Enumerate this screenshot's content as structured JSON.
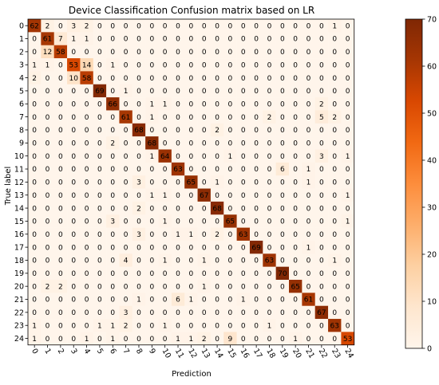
{
  "chart_data": {
    "type": "heatmap",
    "title": "Device Classification Confusion matrix based on LR",
    "xlabel": "Prediction",
    "ylabel": "True label",
    "x_ticks": [
      "0",
      "1",
      "2",
      "3",
      "4",
      "5",
      "6",
      "7",
      "8",
      "9",
      "10",
      "11",
      "12",
      "13",
      "14",
      "15",
      "16",
      "17",
      "18",
      "19",
      "20",
      "21",
      "22",
      "23",
      "24"
    ],
    "y_ticks": [
      "0",
      "1",
      "2",
      "3",
      "4",
      "5",
      "6",
      "7",
      "8",
      "9",
      "10",
      "11",
      "12",
      "13",
      "14",
      "15",
      "16",
      "17",
      "18",
      "19",
      "20",
      "21",
      "22",
      "23",
      "24"
    ],
    "colorbar": {
      "min": 0,
      "max": 70,
      "ticks": [
        0,
        10,
        20,
        30,
        40,
        50,
        60,
        70
      ]
    },
    "colormap": [
      "#fff5eb",
      "#fee6ce",
      "#fdd0a2",
      "#fdae6b",
      "#fd8d3c",
      "#f16913",
      "#d94801",
      "#a63603",
      "#7f2704"
    ],
    "grid": false,
    "matrix": [
      [
        62,
        2,
        0,
        3,
        2,
        0,
        0,
        0,
        0,
        0,
        0,
        0,
        0,
        0,
        0,
        0,
        0,
        0,
        0,
        0,
        0,
        0,
        0,
        1,
        0
      ],
      [
        0,
        61,
        7,
        1,
        1,
        0,
        0,
        0,
        0,
        0,
        0,
        0,
        0,
        0,
        0,
        0,
        0,
        0,
        0,
        0,
        0,
        0,
        0,
        0,
        0
      ],
      [
        0,
        12,
        58,
        0,
        0,
        0,
        0,
        0,
        0,
        0,
        0,
        0,
        0,
        0,
        0,
        0,
        0,
        0,
        0,
        0,
        0,
        0,
        0,
        0,
        0
      ],
      [
        1,
        1,
        0,
        53,
        14,
        0,
        1,
        0,
        0,
        0,
        0,
        0,
        0,
        0,
        0,
        0,
        0,
        0,
        0,
        0,
        0,
        0,
        0,
        0,
        0
      ],
      [
        2,
        0,
        0,
        10,
        58,
        0,
        0,
        0,
        0,
        0,
        0,
        0,
        0,
        0,
        0,
        0,
        0,
        0,
        0,
        0,
        0,
        0,
        0,
        0,
        0
      ],
      [
        0,
        0,
        0,
        0,
        0,
        69,
        0,
        1,
        0,
        0,
        0,
        0,
        0,
        0,
        0,
        0,
        0,
        0,
        0,
        0,
        0,
        0,
        0,
        0,
        0
      ],
      [
        0,
        0,
        0,
        0,
        0,
        0,
        66,
        0,
        0,
        1,
        1,
        0,
        0,
        0,
        0,
        0,
        0,
        0,
        0,
        0,
        0,
        0,
        2,
        0,
        0
      ],
      [
        0,
        0,
        0,
        0,
        0,
        0,
        0,
        61,
        0,
        1,
        0,
        0,
        0,
        0,
        0,
        0,
        0,
        0,
        2,
        0,
        0,
        0,
        5,
        2,
        0
      ],
      [
        0,
        0,
        0,
        0,
        0,
        0,
        0,
        0,
        68,
        0,
        0,
        0,
        0,
        0,
        2,
        0,
        0,
        0,
        0,
        0,
        0,
        0,
        0,
        0,
        0
      ],
      [
        0,
        0,
        0,
        0,
        0,
        0,
        2,
        0,
        0,
        68,
        0,
        0,
        0,
        0,
        0,
        0,
        0,
        0,
        0,
        0,
        0,
        0,
        0,
        0,
        0
      ],
      [
        0,
        0,
        0,
        0,
        0,
        0,
        0,
        0,
        0,
        1,
        64,
        0,
        0,
        0,
        0,
        1,
        0,
        0,
        0,
        0,
        0,
        0,
        3,
        0,
        1
      ],
      [
        0,
        0,
        0,
        0,
        0,
        0,
        0,
        0,
        0,
        0,
        0,
        63,
        0,
        0,
        0,
        0,
        0,
        0,
        0,
        6,
        0,
        1,
        0,
        0,
        0
      ],
      [
        0,
        0,
        0,
        0,
        0,
        0,
        0,
        0,
        3,
        0,
        0,
        0,
        65,
        0,
        1,
        0,
        0,
        0,
        0,
        0,
        0,
        1,
        0,
        0,
        0
      ],
      [
        0,
        0,
        0,
        0,
        0,
        0,
        0,
        0,
        0,
        1,
        1,
        0,
        0,
        67,
        0,
        0,
        0,
        0,
        0,
        0,
        0,
        0,
        0,
        0,
        1
      ],
      [
        0,
        0,
        0,
        0,
        0,
        0,
        0,
        0,
        2,
        0,
        0,
        0,
        0,
        0,
        68,
        0,
        0,
        0,
        0,
        0,
        0,
        0,
        0,
        0,
        0
      ],
      [
        0,
        0,
        0,
        0,
        0,
        0,
        3,
        0,
        0,
        0,
        1,
        0,
        0,
        0,
        0,
        65,
        0,
        0,
        0,
        0,
        0,
        0,
        0,
        0,
        1
      ],
      [
        0,
        0,
        0,
        0,
        0,
        0,
        0,
        0,
        3,
        0,
        0,
        1,
        1,
        0,
        2,
        0,
        63,
        0,
        0,
        0,
        0,
        0,
        0,
        0,
        0
      ],
      [
        0,
        0,
        0,
        0,
        0,
        0,
        0,
        0,
        0,
        0,
        0,
        0,
        0,
        0,
        0,
        0,
        0,
        69,
        0,
        0,
        0,
        1,
        0,
        0,
        0
      ],
      [
        0,
        0,
        0,
        0,
        0,
        0,
        0,
        4,
        0,
        0,
        1,
        0,
        0,
        1,
        0,
        0,
        0,
        0,
        63,
        0,
        0,
        0,
        0,
        1,
        0
      ],
      [
        0,
        0,
        0,
        0,
        0,
        0,
        0,
        0,
        0,
        0,
        0,
        0,
        0,
        0,
        0,
        0,
        0,
        0,
        0,
        70,
        0,
        0,
        0,
        0,
        0
      ],
      [
        0,
        2,
        2,
        0,
        0,
        0,
        0,
        0,
        0,
        0,
        0,
        0,
        0,
        1,
        0,
        0,
        0,
        0,
        0,
        0,
        65,
        0,
        0,
        0,
        0
      ],
      [
        0,
        0,
        0,
        0,
        0,
        0,
        0,
        0,
        1,
        0,
        0,
        6,
        1,
        0,
        0,
        0,
        1,
        0,
        0,
        0,
        0,
        61,
        0,
        0,
        0
      ],
      [
        0,
        0,
        0,
        0,
        0,
        0,
        0,
        3,
        0,
        0,
        0,
        0,
        0,
        0,
        0,
        0,
        0,
        0,
        0,
        0,
        0,
        0,
        67,
        0,
        0
      ],
      [
        1,
        0,
        0,
        0,
        0,
        1,
        1,
        2,
        0,
        0,
        1,
        0,
        0,
        0,
        0,
        0,
        0,
        0,
        1,
        0,
        0,
        0,
        0,
        63,
        0
      ],
      [
        1,
        0,
        0,
        0,
        1,
        0,
        1,
        0,
        0,
        0,
        0,
        1,
        1,
        2,
        0,
        9,
        0,
        0,
        0,
        0,
        1,
        0,
        0,
        0,
        53
      ]
    ]
  }
}
